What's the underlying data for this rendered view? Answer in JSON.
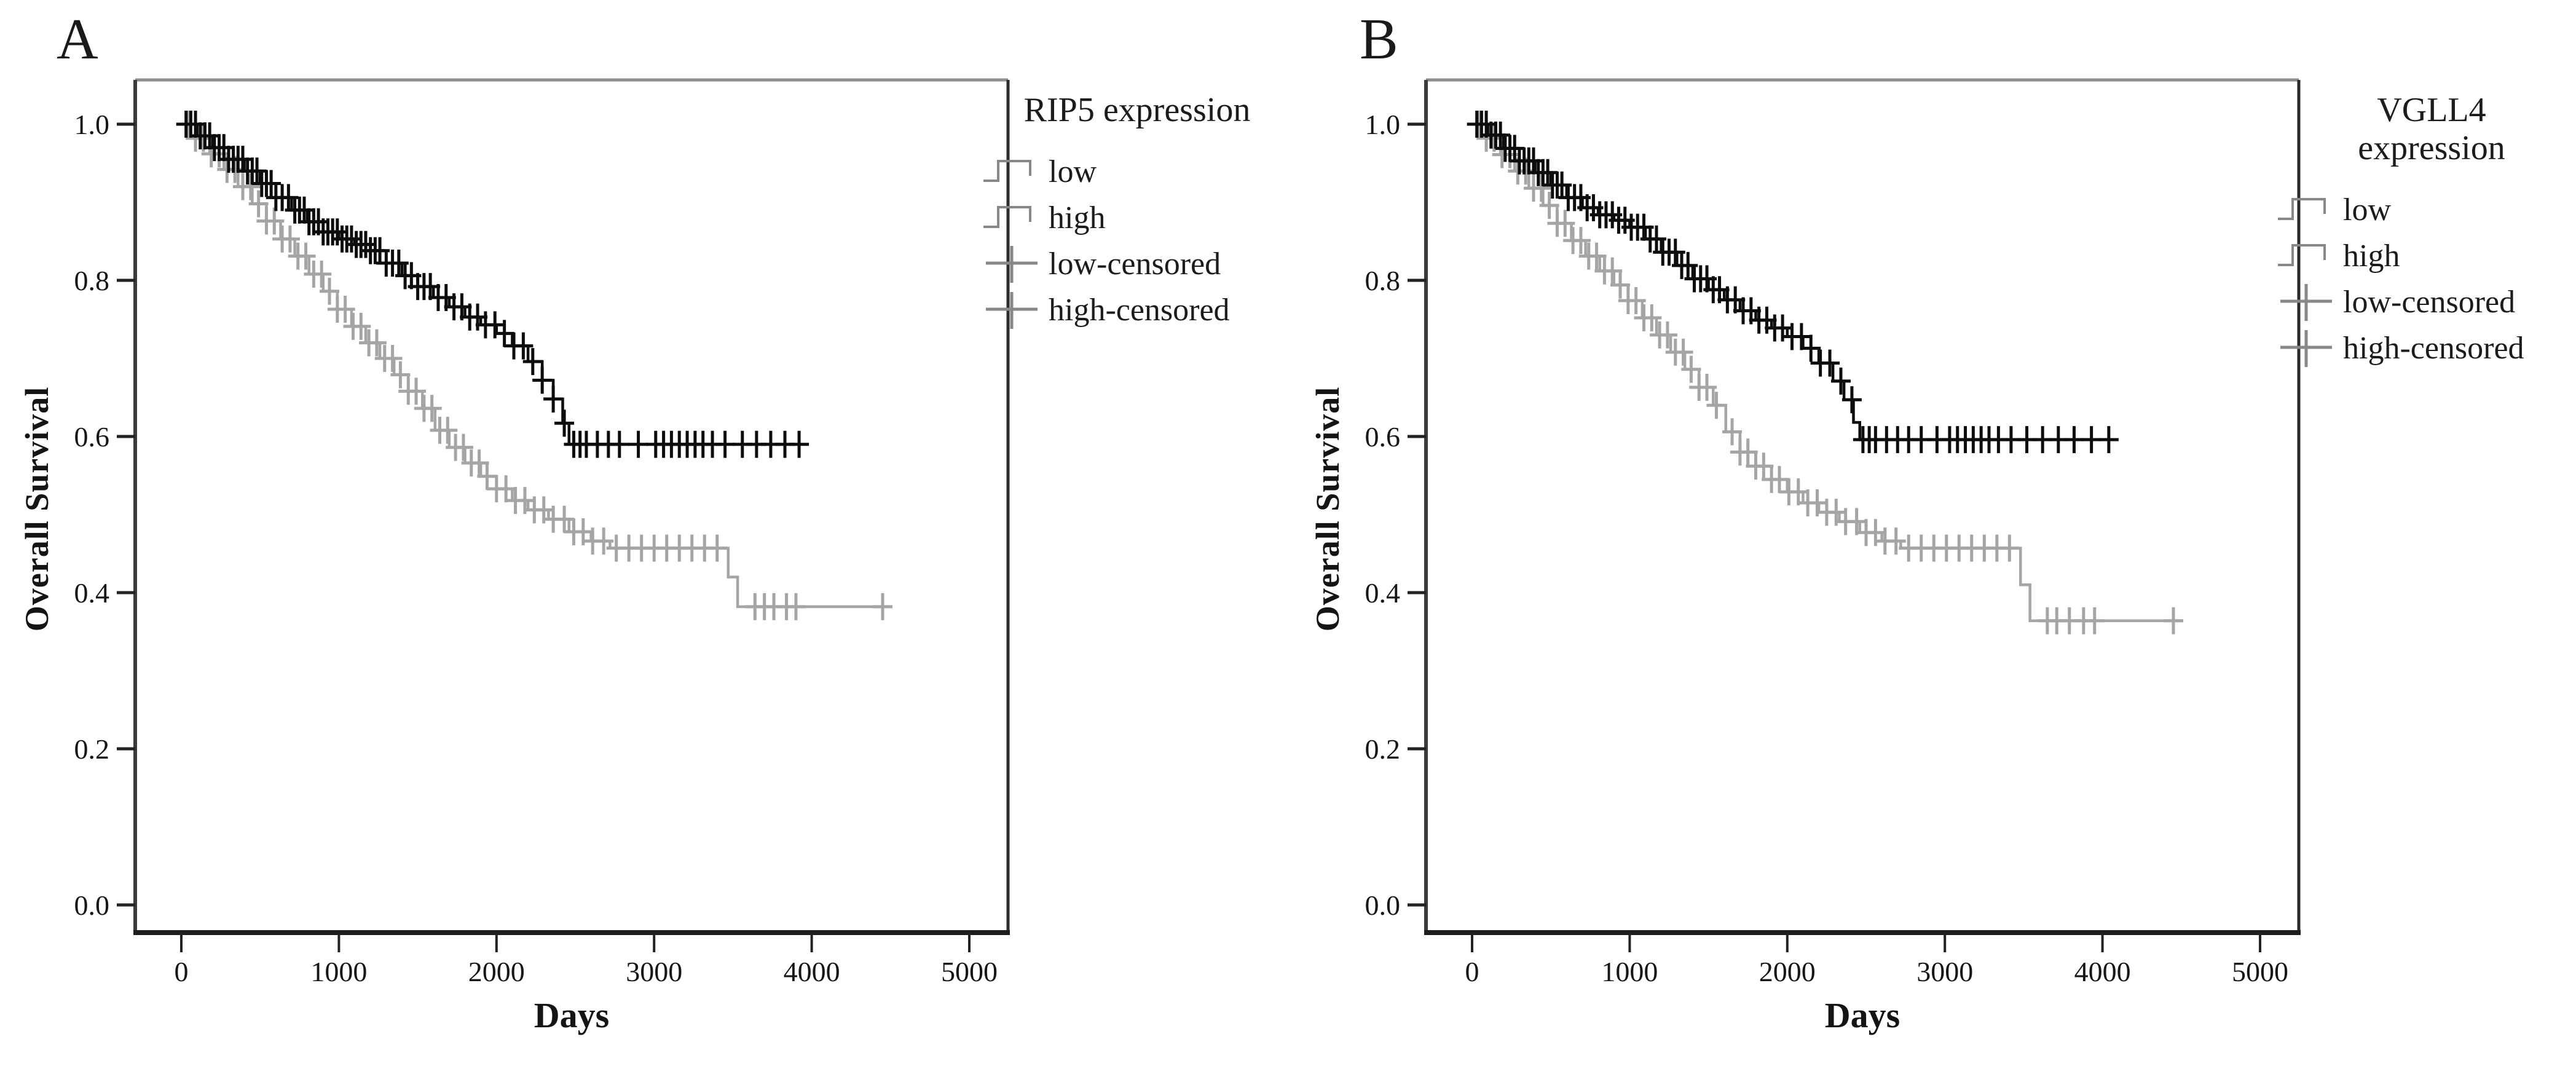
{
  "figure": {
    "background": "#ffffff",
    "text_color": "#141414",
    "frame_colors": {
      "top": "#8f8f8f",
      "left": "#3b3b3b",
      "right": "#2b2b2b",
      "bottom": "#1d1d1d"
    }
  },
  "panels": [
    {
      "letter": "A",
      "y_axis_label": "Overall Survival",
      "x_axis_label": "Days",
      "legend": {
        "title_lines": [
          "RIP5 expression"
        ],
        "items": [
          {
            "label": "low",
            "key": "step",
            "color": "#b2b2b2"
          },
          {
            "label": "high",
            "key": "step",
            "color": "#1a1a1a"
          },
          {
            "label": "low-censored",
            "key": "cross",
            "color": "#a9a9a9"
          },
          {
            "label": "high-censored",
            "key": "cross",
            "color": "#3f3f3f"
          }
        ]
      }
    },
    {
      "letter": "B",
      "y_axis_label": "Overall Survival",
      "x_axis_label": "Days",
      "legend": {
        "title_lines": [
          "VGLL4",
          "expression"
        ],
        "items": [
          {
            "label": "low",
            "key": "step",
            "color": "#b2b2b2"
          },
          {
            "label": "high",
            "key": "step",
            "color": "#1a1a1a"
          },
          {
            "label": "low-censored",
            "key": "cross",
            "color": "#a9a9a9"
          },
          {
            "label": "high-censored",
            "key": "cross",
            "color": "#3f3f3f"
          }
        ]
      }
    }
  ],
  "chart_data": [
    {
      "type": "line",
      "subtype": "kaplan-meier-step",
      "panel": "A",
      "title": "RIP5 expression",
      "xlabel": "Days",
      "ylabel": "Overall Survival",
      "xlim": [
        0,
        5400
      ],
      "ylim": [
        0.0,
        1.0
      ],
      "x_ticks": [
        0,
        1000,
        2000,
        3000,
        4000,
        5000
      ],
      "x_tick_labels": [
        "0",
        "1000",
        "2000",
        "3000",
        "4000",
        "5000"
      ],
      "y_ticks": [
        0.0,
        0.2,
        0.4,
        0.6,
        0.8,
        1.0
      ],
      "y_tick_labels": [
        "0.0",
        "0.2",
        "0.4",
        "0.6",
        "0.8",
        "1.0"
      ],
      "grid": false,
      "legend_position": "right",
      "series": [
        {
          "name": "low",
          "color": "#a5a5a5",
          "end_day": 4460,
          "points": [
            [
              0,
              1.0
            ],
            [
              90,
              0.982
            ],
            [
              180,
              0.962
            ],
            [
              270,
              0.942
            ],
            [
              360,
              0.92
            ],
            [
              450,
              0.898
            ],
            [
              540,
              0.876
            ],
            [
              630,
              0.853
            ],
            [
              720,
              0.831
            ],
            [
              810,
              0.808
            ],
            [
              900,
              0.786
            ],
            [
              990,
              0.763
            ],
            [
              1080,
              0.741
            ],
            [
              1170,
              0.72
            ],
            [
              1260,
              0.7
            ],
            [
              1350,
              0.679
            ],
            [
              1440,
              0.658
            ],
            [
              1530,
              0.636
            ],
            [
              1610,
              0.608
            ],
            [
              1700,
              0.586
            ],
            [
              1800,
              0.566
            ],
            [
              1900,
              0.549
            ],
            [
              2000,
              0.533
            ],
            [
              2100,
              0.518
            ],
            [
              2200,
              0.506
            ],
            [
              2330,
              0.494
            ],
            [
              2460,
              0.478
            ],
            [
              2600,
              0.466
            ],
            [
              2720,
              0.457
            ],
            [
              3470,
              0.42
            ],
            [
              3530,
              0.382
            ]
          ],
          "censor_days": [
            40,
            90,
            140,
            190,
            240,
            290,
            340,
            390,
            440,
            490,
            540,
            590,
            640,
            690,
            740,
            790,
            840,
            890,
            940,
            990,
            1040,
            1090,
            1140,
            1190,
            1240,
            1290,
            1340,
            1390,
            1440,
            1490,
            1540,
            1590,
            1640,
            1690,
            1740,
            1790,
            1840,
            1890,
            1940,
            2000,
            2060,
            2120,
            2180,
            2240,
            2300,
            2360,
            2430,
            2490,
            2550,
            2610,
            2680,
            2760,
            2840,
            2920,
            3000,
            3080,
            3160,
            3240,
            3320,
            3400,
            3640,
            3700,
            3760,
            3840,
            3900,
            4450
          ]
        },
        {
          "name": "high",
          "color": "#0d0d0d",
          "end_day": 3950,
          "points": [
            [
              0,
              1.0
            ],
            [
              100,
              0.985
            ],
            [
              200,
              0.97
            ],
            [
              300,
              0.955
            ],
            [
              400,
              0.94
            ],
            [
              500,
              0.924
            ],
            [
              600,
              0.906
            ],
            [
              700,
              0.89
            ],
            [
              800,
              0.875
            ],
            [
              900,
              0.862
            ],
            [
              1000,
              0.853
            ],
            [
              1100,
              0.846
            ],
            [
              1200,
              0.838
            ],
            [
              1300,
              0.822
            ],
            [
              1400,
              0.806
            ],
            [
              1500,
              0.792
            ],
            [
              1600,
              0.778
            ],
            [
              1700,
              0.766
            ],
            [
              1800,
              0.753
            ],
            [
              1900,
              0.743
            ],
            [
              2000,
              0.732
            ],
            [
              2100,
              0.716
            ],
            [
              2200,
              0.696
            ],
            [
              2290,
              0.672
            ],
            [
              2360,
              0.648
            ],
            [
              2420,
              0.617
            ],
            [
              2460,
              0.59
            ]
          ],
          "censor_days": [
            30,
            60,
            90,
            120,
            150,
            180,
            210,
            240,
            270,
            300,
            330,
            360,
            390,
            420,
            450,
            480,
            510,
            540,
            570,
            600,
            640,
            680,
            720,
            750,
            780,
            810,
            840,
            870,
            900,
            930,
            960,
            990,
            1020,
            1050,
            1080,
            1110,
            1140,
            1170,
            1200,
            1230,
            1260,
            1300,
            1340,
            1380,
            1420,
            1460,
            1500,
            1540,
            1580,
            1630,
            1680,
            1730,
            1780,
            1830,
            1880,
            1930,
            1990,
            2050,
            2110,
            2170,
            2230,
            2290,
            2360,
            2430,
            2490,
            2530,
            2570,
            2640,
            2710,
            2780,
            2900,
            3010,
            3060,
            3110,
            3160,
            3210,
            3260,
            3310,
            3370,
            3450,
            3560,
            3650,
            3740,
            3830,
            3920
          ]
        }
      ]
    },
    {
      "type": "line",
      "subtype": "kaplan-meier-step",
      "panel": "B",
      "title": "VGLL4 expression",
      "xlabel": "Days",
      "ylabel": "Overall Survival",
      "xlim": [
        0,
        5400
      ],
      "ylim": [
        0.0,
        1.0
      ],
      "x_ticks": [
        0,
        1000,
        2000,
        3000,
        4000,
        5000
      ],
      "x_tick_labels": [
        "0",
        "1000",
        "2000",
        "3000",
        "4000",
        "5000"
      ],
      "y_ticks": [
        0.0,
        0.2,
        0.4,
        0.6,
        0.8,
        1.0
      ],
      "y_tick_labels": [
        "0.0",
        "0.2",
        "0.4",
        "0.6",
        "0.8",
        "1.0"
      ],
      "grid": false,
      "legend_position": "right",
      "series": [
        {
          "name": "low",
          "color": "#a5a5a5",
          "end_day": 4460,
          "points": [
            [
              0,
              1.0
            ],
            [
              90,
              0.982
            ],
            [
              180,
              0.961
            ],
            [
              270,
              0.94
            ],
            [
              360,
              0.918
            ],
            [
              450,
              0.896
            ],
            [
              540,
              0.873
            ],
            [
              630,
              0.851
            ],
            [
              720,
              0.831
            ],
            [
              810,
              0.812
            ],
            [
              900,
              0.794
            ],
            [
              990,
              0.774
            ],
            [
              1080,
              0.752
            ],
            [
              1170,
              0.73
            ],
            [
              1260,
              0.708
            ],
            [
              1350,
              0.686
            ],
            [
              1440,
              0.663
            ],
            [
              1530,
              0.64
            ],
            [
              1610,
              0.606
            ],
            [
              1700,
              0.58
            ],
            [
              1800,
              0.562
            ],
            [
              1900,
              0.545
            ],
            [
              2000,
              0.529
            ],
            [
              2100,
              0.515
            ],
            [
              2200,
              0.503
            ],
            [
              2330,
              0.491
            ],
            [
              2460,
              0.477
            ],
            [
              2600,
              0.466
            ],
            [
              2720,
              0.457
            ],
            [
              3480,
              0.41
            ],
            [
              3540,
              0.364
            ]
          ],
          "censor_days": [
            40,
            90,
            140,
            190,
            240,
            290,
            340,
            390,
            440,
            490,
            540,
            590,
            640,
            690,
            740,
            790,
            840,
            890,
            940,
            990,
            1040,
            1090,
            1140,
            1190,
            1240,
            1290,
            1340,
            1390,
            1440,
            1490,
            1550,
            1650,
            1700,
            1750,
            1800,
            1850,
            1900,
            1950,
            2010,
            2070,
            2130,
            2190,
            2250,
            2310,
            2370,
            2440,
            2500,
            2560,
            2620,
            2690,
            2770,
            2850,
            2930,
            3010,
            3090,
            3170,
            3250,
            3330,
            3410,
            3650,
            3710,
            3790,
            3880,
            3950,
            4450
          ]
        },
        {
          "name": "high",
          "color": "#0d0d0d",
          "end_day": 4060,
          "points": [
            [
              0,
              1.0
            ],
            [
              100,
              0.986
            ],
            [
              200,
              0.969
            ],
            [
              300,
              0.953
            ],
            [
              400,
              0.938
            ],
            [
              500,
              0.922
            ],
            [
              600,
              0.906
            ],
            [
              700,
              0.893
            ],
            [
              800,
              0.884
            ],
            [
              900,
              0.877
            ],
            [
              1000,
              0.868
            ],
            [
              1100,
              0.853
            ],
            [
              1200,
              0.836
            ],
            [
              1300,
              0.819
            ],
            [
              1400,
              0.802
            ],
            [
              1500,
              0.788
            ],
            [
              1600,
              0.775
            ],
            [
              1700,
              0.761
            ],
            [
              1800,
              0.749
            ],
            [
              1900,
              0.739
            ],
            [
              2000,
              0.728
            ],
            [
              2100,
              0.713
            ],
            [
              2200,
              0.694
            ],
            [
              2290,
              0.671
            ],
            [
              2360,
              0.647
            ],
            [
              2420,
              0.618
            ],
            [
              2460,
              0.596
            ]
          ],
          "censor_days": [
            30,
            60,
            90,
            120,
            150,
            180,
            210,
            240,
            270,
            300,
            330,
            360,
            390,
            420,
            450,
            480,
            510,
            540,
            570,
            610,
            650,
            690,
            730,
            770,
            810,
            850,
            890,
            930,
            970,
            1010,
            1050,
            1090,
            1130,
            1170,
            1210,
            1250,
            1290,
            1330,
            1370,
            1410,
            1450,
            1490,
            1530,
            1570,
            1620,
            1670,
            1720,
            1770,
            1820,
            1870,
            1920,
            1970,
            2030,
            2090,
            2150,
            2210,
            2270,
            2340,
            2410,
            2480,
            2520,
            2560,
            2630,
            2700,
            2770,
            2850,
            2950,
            3030,
            3080,
            3130,
            3180,
            3230,
            3280,
            3340,
            3420,
            3520,
            3620,
            3720,
            3820,
            3930,
            4040
          ]
        }
      ]
    }
  ]
}
